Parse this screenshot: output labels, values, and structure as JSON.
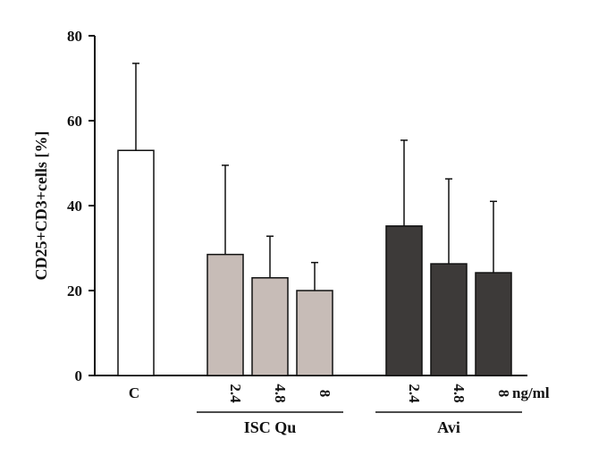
{
  "chart_data": {
    "type": "bar",
    "ylabel": "CD25+CD3+cells [%]",
    "ylim": [
      0,
      80
    ],
    "yticks": [
      "0",
      "20",
      "40",
      "60",
      "80"
    ],
    "unit_label": "ng/ml",
    "categories": [
      "C",
      "2.4",
      "4.8",
      "8",
      "2.4",
      "4.8",
      "8"
    ],
    "values": [
      53,
      28.5,
      23,
      20,
      35.2,
      26.3,
      24.2
    ],
    "errors": [
      20.5,
      21,
      9.8,
      6.6,
      20.2,
      20,
      16.8
    ],
    "bar_colors": [
      "#ffffff",
      "#c7bcb7",
      "#c7bcb7",
      "#c7bcb7",
      "#3d3a39",
      "#3d3a39",
      "#3d3a39"
    ],
    "groups": [
      {
        "label": "ISC Qu",
        "members": [
          1,
          2,
          3
        ]
      },
      {
        "label": "Avi",
        "members": [
          4,
          5,
          6
        ]
      }
    ],
    "grid": false,
    "legend": "none"
  }
}
